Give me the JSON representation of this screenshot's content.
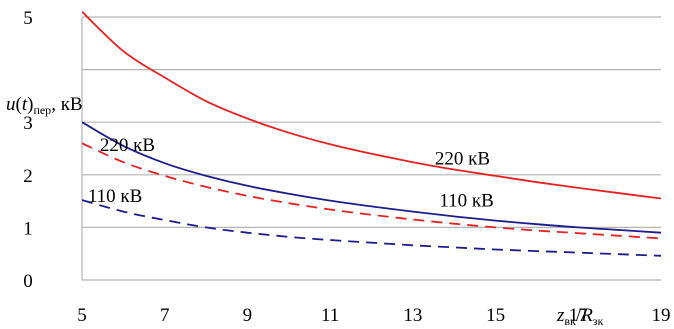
{
  "chart_data": {
    "type": "line",
    "xlim": [
      5,
      19
    ],
    "ylim": [
      0,
      5
    ],
    "x_ticks": [
      5,
      7,
      9,
      11,
      13,
      15,
      17,
      19
    ],
    "y_ticks": [
      0,
      1,
      2,
      3,
      4,
      5
    ],
    "y_tick_labels": [
      "0",
      "1",
      "2",
      "3",
      "",
      "5"
    ],
    "grid": "horizontal",
    "ylabel": {
      "sym": "u",
      "open": "(",
      "t": "t",
      "close": ")",
      "sub": "пер",
      "unit": ", кВ"
    },
    "xlabel": {
      "num": "z",
      "num_sub": "вк",
      "slash": "/",
      "den": "R",
      "den_sub": "зк"
    },
    "series": [
      {
        "id": "r-solid",
        "color": "#e82020",
        "dash": false,
        "x": [
          5,
          6,
          7,
          8,
          9,
          10,
          11,
          12,
          13,
          14,
          15,
          16,
          17,
          18,
          19
        ],
        "y": [
          5.1,
          4.35,
          3.85,
          3.4,
          3.07,
          2.8,
          2.58,
          2.4,
          2.24,
          2.1,
          1.98,
          1.86,
          1.75,
          1.65,
          1.55
        ]
      },
      {
        "id": "b-solid",
        "color": "#1c1c8c",
        "dash": false,
        "x": [
          5,
          6,
          7,
          8,
          9,
          10,
          11,
          12,
          13,
          14,
          15,
          16,
          17,
          18,
          19
        ],
        "y": [
          3.0,
          2.55,
          2.22,
          1.98,
          1.79,
          1.64,
          1.51,
          1.4,
          1.3,
          1.21,
          1.13,
          1.06,
          1.0,
          0.95,
          0.9
        ]
      },
      {
        "id": "r-dash",
        "color": "#e82020",
        "dash": true,
        "x": [
          5,
          6,
          7,
          8,
          9,
          10,
          11,
          12,
          13,
          14,
          15,
          16,
          17,
          18,
          19
        ],
        "y": [
          2.6,
          2.24,
          1.98,
          1.77,
          1.6,
          1.46,
          1.34,
          1.24,
          1.15,
          1.07,
          1.0,
          0.94,
          0.89,
          0.84,
          0.79
        ]
      },
      {
        "id": "b-dash",
        "color": "#1c1c8c",
        "dash": true,
        "x": [
          5,
          6,
          7,
          8,
          9,
          10,
          11,
          12,
          13,
          14,
          15,
          16,
          17,
          18,
          19
        ],
        "y": [
          1.52,
          1.3,
          1.14,
          1.0,
          0.9,
          0.82,
          0.76,
          0.71,
          0.66,
          0.62,
          0.58,
          0.55,
          0.52,
          0.49,
          0.46
        ]
      }
    ],
    "annotations": [
      {
        "id": "ann-220-upper",
        "text": "220 кВ",
        "x": 14.2,
        "y": 2.2
      },
      {
        "id": "ann-220-lower",
        "text": "220 кВ",
        "x": 6.1,
        "y": 2.45
      },
      {
        "id": "ann-110-right",
        "text": "110 кВ",
        "x": 14.3,
        "y": 1.4
      },
      {
        "id": "ann-110-left",
        "text": "110 кВ",
        "x": 5.8,
        "y": 1.48
      }
    ]
  }
}
